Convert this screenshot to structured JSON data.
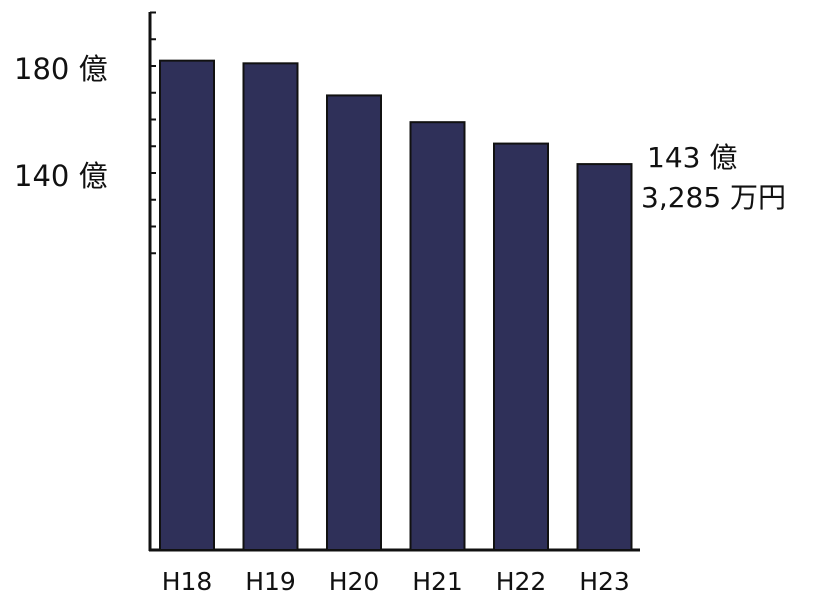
{
  "chart_data": {
    "type": "bar",
    "categories": [
      "H18",
      "H19",
      "H20",
      "H21",
      "H22",
      "H23"
    ],
    "values": [
      182,
      181,
      169,
      159,
      151,
      143.3285
    ],
    "unit": "億",
    "ylim": [
      100,
      200
    ],
    "yticks": [
      180,
      140
    ],
    "ytick_labels": [
      "180 億",
      "140 億"
    ],
    "annotation": {
      "line1": "143 億",
      "line2": "3,285 万円"
    },
    "bar_color": "#2f3059",
    "grid": false,
    "legend": "none"
  }
}
